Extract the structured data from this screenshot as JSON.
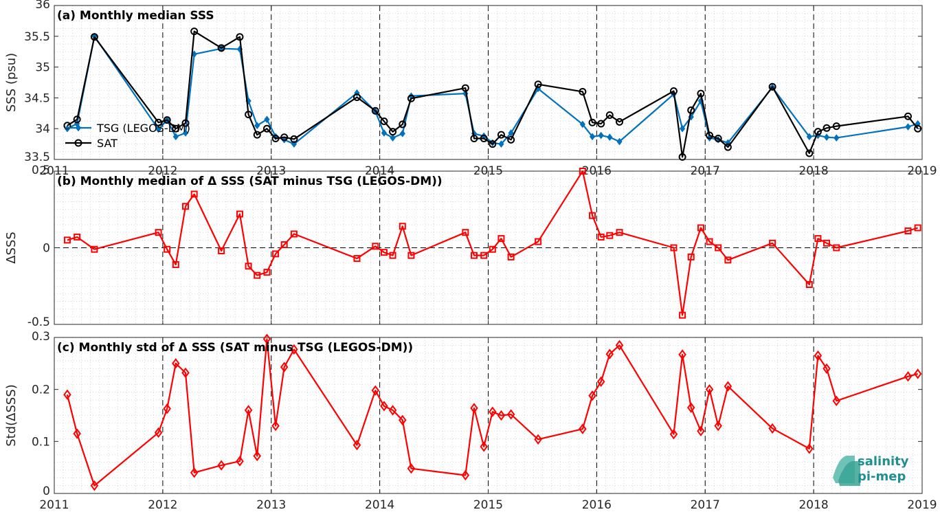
{
  "chart_data": [
    {
      "type": "line",
      "title": "(a) Monthly median SSS",
      "ylabel": "SSS (psu)",
      "ylim": [
        33.5,
        36
      ],
      "yticks": [
        "33.5",
        "34",
        "34.5",
        "35",
        "35.5",
        "36"
      ],
      "xlim": [
        2011,
        2019
      ],
      "xticks": [
        "2011",
        "2012",
        "2013",
        "2014",
        "2015",
        "2016",
        "2017",
        "2018",
        "2019"
      ],
      "grid": "minor-dotted",
      "legend_position": "bottom-left",
      "series": [
        {
          "name": "TSG (LEGOS-DM)",
          "color": "#0072bd",
          "marker": "diamond-filled",
          "points": [
            [
              2011.12,
              34.0
            ],
            [
              2011.21,
              34.08
            ],
            [
              2011.37,
              35.5
            ],
            [
              2011.96,
              33.99
            ],
            [
              2012.04,
              34.14
            ],
            [
              2012.12,
              33.87
            ],
            [
              2012.21,
              33.93
            ],
            [
              2012.29,
              35.21
            ],
            [
              2012.54,
              35.3
            ],
            [
              2012.71,
              35.29
            ],
            [
              2012.79,
              34.45
            ],
            [
              2012.87,
              34.05
            ],
            [
              2012.96,
              34.15
            ],
            [
              2013.04,
              33.87
            ],
            [
              2013.12,
              33.82
            ],
            [
              2013.21,
              33.75
            ],
            [
              2013.79,
              34.58
            ],
            [
              2013.96,
              34.28
            ],
            [
              2014.04,
              33.93
            ],
            [
              2014.12,
              33.85
            ],
            [
              2014.21,
              33.92
            ],
            [
              2014.29,
              34.53
            ],
            [
              2014.79,
              34.57
            ],
            [
              2014.87,
              33.92
            ],
            [
              2014.96,
              33.88
            ],
            [
              2015.04,
              33.77
            ],
            [
              2015.12,
              33.75
            ],
            [
              2015.21,
              33.93
            ],
            [
              2015.46,
              34.65
            ],
            [
              2015.87,
              34.07
            ],
            [
              2015.96,
              33.87
            ],
            [
              2016.04,
              33.89
            ],
            [
              2016.12,
              33.86
            ],
            [
              2016.21,
              33.79
            ],
            [
              2016.71,
              34.56
            ],
            [
              2016.79,
              34.0
            ],
            [
              2016.87,
              34.19
            ],
            [
              2016.96,
              34.45
            ],
            [
              2017.04,
              33.85
            ],
            [
              2017.12,
              33.82
            ],
            [
              2017.21,
              33.77
            ],
            [
              2017.62,
              34.67
            ],
            [
              2017.96,
              33.87
            ],
            [
              2018.04,
              33.89
            ],
            [
              2018.12,
              33.86
            ],
            [
              2018.21,
              33.85
            ],
            [
              2018.87,
              34.03
            ],
            [
              2018.96,
              34.08
            ]
          ]
        },
        {
          "name": "SAT",
          "color": "#000000",
          "marker": "circle-open",
          "points": [
            [
              2011.12,
              34.05
            ],
            [
              2011.21,
              34.15
            ],
            [
              2011.37,
              35.49
            ],
            [
              2011.96,
              34.1
            ],
            [
              2012.04,
              34.14
            ],
            [
              2012.12,
              34.0
            ],
            [
              2012.21,
              34.09
            ],
            [
              2012.29,
              35.58
            ],
            [
              2012.54,
              35.31
            ],
            [
              2012.71,
              35.49
            ],
            [
              2012.79,
              34.23
            ],
            [
              2012.87,
              33.9
            ],
            [
              2012.96,
              34.0
            ],
            [
              2013.04,
              33.84
            ],
            [
              2013.12,
              33.86
            ],
            [
              2013.21,
              33.83
            ],
            [
              2013.79,
              34.51
            ],
            [
              2013.96,
              34.29
            ],
            [
              2014.04,
              34.12
            ],
            [
              2014.12,
              33.95
            ],
            [
              2014.21,
              34.07
            ],
            [
              2014.29,
              34.49
            ],
            [
              2014.79,
              34.66
            ],
            [
              2014.87,
              33.84
            ],
            [
              2014.96,
              33.84
            ],
            [
              2015.04,
              33.75
            ],
            [
              2015.12,
              33.9
            ],
            [
              2015.21,
              33.82
            ],
            [
              2015.46,
              34.72
            ],
            [
              2015.87,
              34.6
            ],
            [
              2015.96,
              34.1
            ],
            [
              2016.04,
              34.08
            ],
            [
              2016.12,
              34.22
            ],
            [
              2016.21,
              34.11
            ],
            [
              2016.71,
              34.61
            ],
            [
              2016.79,
              33.54
            ],
            [
              2016.87,
              34.3
            ],
            [
              2016.96,
              34.57
            ],
            [
              2017.04,
              33.89
            ],
            [
              2017.12,
              33.84
            ],
            [
              2017.21,
              33.7
            ],
            [
              2017.62,
              34.68
            ],
            [
              2017.96,
              33.6
            ],
            [
              2018.04,
              33.95
            ],
            [
              2018.12,
              34.01
            ],
            [
              2018.21,
              34.04
            ],
            [
              2018.87,
              34.2
            ],
            [
              2018.96,
              34.0
            ]
          ]
        }
      ]
    },
    {
      "type": "line",
      "title": "(b) Monthly median of Δ SSS (SAT minus TSG (LEGOS-DM))",
      "ylabel": "ΔSSS",
      "ylim": [
        -0.5,
        0.5
      ],
      "yticks": [
        "-0.5",
        "0",
        "0.5"
      ],
      "xlim": [
        2011,
        2019
      ],
      "grid": "minor-dotted",
      "zero_line": true,
      "series": [
        {
          "color": "#ff0000",
          "marker": "square-open",
          "points": [
            [
              2011.12,
              0.05
            ],
            [
              2011.21,
              0.07
            ],
            [
              2011.37,
              -0.01
            ],
            [
              2011.96,
              0.1
            ],
            [
              2012.04,
              -0.01
            ],
            [
              2012.12,
              -0.11
            ],
            [
              2012.21,
              0.27
            ],
            [
              2012.29,
              0.35
            ],
            [
              2012.54,
              -0.02
            ],
            [
              2012.71,
              0.22
            ],
            [
              2012.79,
              -0.12
            ],
            [
              2012.87,
              -0.18
            ],
            [
              2012.96,
              -0.16
            ],
            [
              2013.04,
              -0.04
            ],
            [
              2013.12,
              0.02
            ],
            [
              2013.21,
              0.09
            ],
            [
              2013.79,
              -0.07
            ],
            [
              2013.96,
              0.01
            ],
            [
              2014.04,
              -0.03
            ],
            [
              2014.12,
              -0.05
            ],
            [
              2014.21,
              0.14
            ],
            [
              2014.29,
              -0.05
            ],
            [
              2014.79,
              0.1
            ],
            [
              2014.87,
              -0.05
            ],
            [
              2014.96,
              -0.05
            ],
            [
              2015.04,
              -0.01
            ],
            [
              2015.12,
              0.06
            ],
            [
              2015.21,
              -0.06
            ],
            [
              2015.46,
              0.04
            ],
            [
              2015.87,
              0.5
            ],
            [
              2015.96,
              0.21
            ],
            [
              2016.04,
              0.07
            ],
            [
              2016.12,
              0.08
            ],
            [
              2016.21,
              0.1
            ],
            [
              2016.71,
              0.0
            ],
            [
              2016.79,
              -0.44
            ],
            [
              2016.87,
              -0.06
            ],
            [
              2016.96,
              0.13
            ],
            [
              2017.04,
              0.04
            ],
            [
              2017.12,
              0.0
            ],
            [
              2017.21,
              -0.08
            ],
            [
              2017.62,
              0.03
            ],
            [
              2017.96,
              -0.24
            ],
            [
              2018.04,
              0.06
            ],
            [
              2018.12,
              0.03
            ],
            [
              2018.21,
              0.0
            ],
            [
              2018.87,
              0.11
            ],
            [
              2018.96,
              0.13
            ]
          ]
        }
      ]
    },
    {
      "type": "line",
      "title": "(c) Monthly std of Δ SSS (SAT minus TSG (LEGOS-DM))",
      "ylabel": "Std(ΔSSS)",
      "ylim": [
        0,
        0.3
      ],
      "yticks": [
        "0",
        "0.1",
        "0.2",
        "0.3"
      ],
      "xlim": [
        2011,
        2019
      ],
      "xticks": [
        "2011",
        "2012",
        "2013",
        "2014",
        "2015",
        "2016",
        "2017",
        "2018",
        "2019"
      ],
      "grid": "minor-dotted",
      "series": [
        {
          "color": "#ff0000",
          "marker": "diamond-open",
          "points": [
            [
              2011.12,
              0.19
            ],
            [
              2011.21,
              0.115
            ],
            [
              2011.37,
              0.015
            ],
            [
              2011.96,
              0.117
            ],
            [
              2012.04,
              0.163
            ],
            [
              2012.12,
              0.25
            ],
            [
              2012.21,
              0.232
            ],
            [
              2012.29,
              0.04
            ],
            [
              2012.54,
              0.054
            ],
            [
              2012.71,
              0.062
            ],
            [
              2012.79,
              0.16
            ],
            [
              2012.87,
              0.072
            ],
            [
              2012.96,
              0.297
            ],
            [
              2013.04,
              0.13
            ],
            [
              2013.12,
              0.243
            ],
            [
              2013.21,
              0.277
            ],
            [
              2013.79,
              0.093
            ],
            [
              2013.96,
              0.198
            ],
            [
              2014.04,
              0.168
            ],
            [
              2014.12,
              0.16
            ],
            [
              2014.21,
              0.141
            ],
            [
              2014.29,
              0.048
            ],
            [
              2014.79,
              0.035
            ],
            [
              2014.87,
              0.164
            ],
            [
              2014.96,
              0.09
            ],
            [
              2015.04,
              0.157
            ],
            [
              2015.12,
              0.15
            ],
            [
              2015.21,
              0.152
            ],
            [
              2015.46,
              0.104
            ],
            [
              2015.87,
              0.124
            ],
            [
              2015.96,
              0.188
            ],
            [
              2016.04,
              0.215
            ],
            [
              2016.12,
              0.268
            ],
            [
              2016.21,
              0.285
            ],
            [
              2016.71,
              0.114
            ],
            [
              2016.79,
              0.267
            ],
            [
              2016.87,
              0.165
            ],
            [
              2016.96,
              0.12
            ],
            [
              2017.04,
              0.2
            ],
            [
              2017.12,
              0.13
            ],
            [
              2017.21,
              0.206
            ],
            [
              2017.62,
              0.125
            ],
            [
              2017.96,
              0.086
            ],
            [
              2018.04,
              0.265
            ],
            [
              2018.12,
              0.24
            ],
            [
              2018.21,
              0.178
            ],
            [
              2018.87,
              0.225
            ],
            [
              2018.96,
              0.23
            ]
          ]
        }
      ]
    }
  ],
  "logo": {
    "line1": "salinity",
    "line2": "pi-mep",
    "color": "#1f8f8f"
  }
}
